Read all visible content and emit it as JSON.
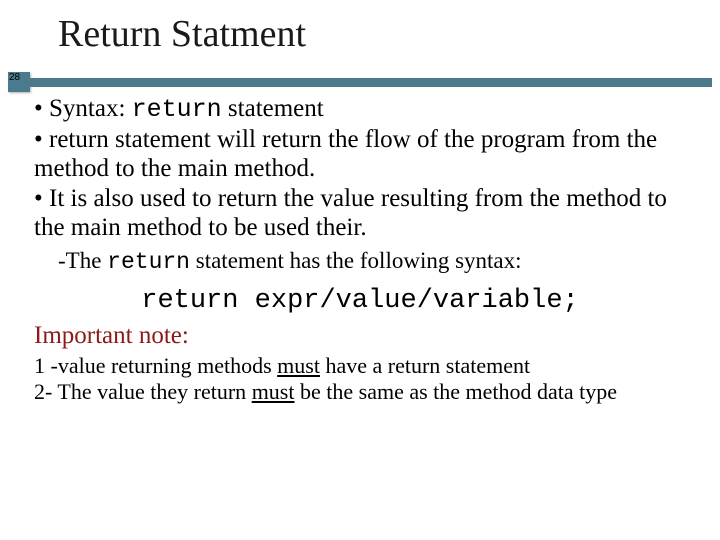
{
  "slide": {
    "title": "Return Statment",
    "page_number": "28",
    "bullet1_prefix": "• Syntax: ",
    "bullet1_code": "return",
    "bullet1_suffix": " statement",
    "bullet2": "• return statement will return the flow of the program from the method to the main method.",
    "bullet3": "• It is also used to return the value resulting from the method to the main method to be used their.",
    "sub1_prefix": "-The ",
    "sub1_code": "return",
    "sub1_suffix": " statement has the following syntax:",
    "syntax_code": "return",
    "syntax_rest": " expr/value/variable;",
    "important_label": "Important note:",
    "note1_a": "1 -value returning methods ",
    "note1_must": "must",
    "note1_b": " have a return statement",
    "note2_a": "2- The value they return ",
    "note2_must": "must",
    "note2_b": " be the same as the method data type"
  },
  "colors": {
    "divider": "#4a7a8c",
    "important_text": "#8b1a1a",
    "text": "#000000",
    "background": "#ffffff"
  }
}
